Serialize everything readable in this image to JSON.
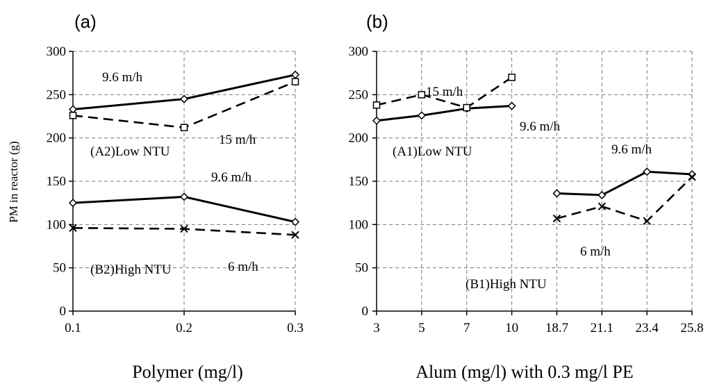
{
  "chart_data": [
    {
      "type": "line",
      "panel": "(a)",
      "title": "",
      "xlabel": "Polymer (mg/l)",
      "ylabel": "PM in reactor (g)",
      "ylim": [
        0,
        300
      ],
      "yticks": [
        "0",
        "50",
        "100",
        "150",
        "200",
        "250",
        "300"
      ],
      "categories": [
        "0.1",
        "0.2",
        "0.3"
      ],
      "grid": true,
      "series": [
        {
          "name": "",
          "style": "solid",
          "marker": "diamond",
          "values": [
            233,
            245,
            273
          ]
        },
        {
          "name": "",
          "style": "dashed",
          "marker": "square",
          "values": [
            226,
            212,
            265
          ]
        },
        {
          "name": "",
          "style": "solid",
          "marker": "diamond",
          "values": [
            125,
            132,
            103
          ]
        },
        {
          "name": "",
          "style": "dashed",
          "marker": "x",
          "values": [
            96,
            95,
            88
          ]
        }
      ],
      "annotations": [
        {
          "text": "9.6 m/h"
        },
        {
          "text": "15 m/h"
        },
        {
          "text": "(A2)Low NTU"
        },
        {
          "text": "9.6 m/h"
        },
        {
          "text": "(B2)High NTU"
        },
        {
          "text": "6 m/h"
        }
      ]
    },
    {
      "type": "line",
      "panel": "(b)",
      "title": "",
      "xlabel": "Alum (mg/l) with 0.3 mg/l PE",
      "ylabel": "",
      "ylim": [
        0,
        300
      ],
      "yticks": [
        "0",
        "50",
        "100",
        "150",
        "200",
        "250",
        "300"
      ],
      "categories": [
        "3",
        "5",
        "7",
        "10",
        "18.7",
        "21.1",
        "23.4",
        "25.8"
      ],
      "grid": true,
      "series": [
        {
          "name": "",
          "style": "solid",
          "marker": "diamond",
          "values": [
            220,
            226,
            234,
            237,
            null,
            null,
            null,
            null
          ]
        },
        {
          "name": "",
          "style": "dashed",
          "marker": "square",
          "values": [
            238,
            250,
            235,
            270,
            null,
            null,
            null,
            null
          ]
        },
        {
          "name": "",
          "style": "solid",
          "marker": "diamond",
          "values": [
            null,
            null,
            null,
            null,
            136,
            134,
            161,
            158
          ]
        },
        {
          "name": "",
          "style": "dashed",
          "marker": "x",
          "values": [
            null,
            null,
            null,
            null,
            107,
            121,
            104,
            155
          ]
        }
      ],
      "annotations": [
        {
          "text": "15 m/h"
        },
        {
          "text": "9.6 m/h"
        },
        {
          "text": "(A1)Low NTU"
        },
        {
          "text": "9.6 m/h"
        },
        {
          "text": "6 m/h"
        },
        {
          "text": "(B1)High NTU"
        }
      ]
    }
  ]
}
